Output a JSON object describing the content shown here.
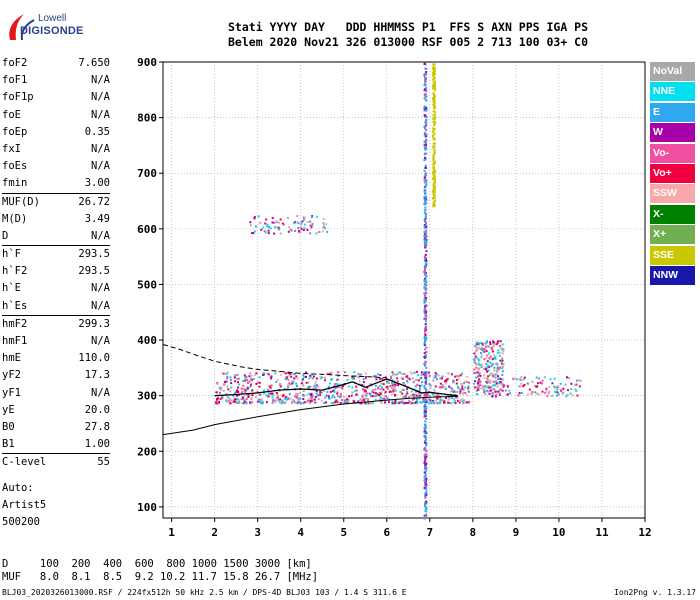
{
  "logo": {
    "line1": "Lowell",
    "line2": "DIGISONDE"
  },
  "header": {
    "line1": "Stati YYYY DAY   DDD HHMMSS P1  FFS S AXN PPS IGA PS",
    "line2": "Belem 2020 Nov21 326 013000 RSF 005 2 713 100 03+ C0"
  },
  "params": [
    {
      "k": "foF2",
      "v": "7.650"
    },
    {
      "k": "foF1",
      "v": "N/A"
    },
    {
      "k": "foF1p",
      "v": "N/A"
    },
    {
      "k": "foE",
      "v": "N/A"
    },
    {
      "k": "foEp",
      "v": "0.35"
    },
    {
      "k": "fxI",
      "v": "N/A"
    },
    {
      "k": "foEs",
      "v": "N/A"
    },
    {
      "k": "fmin",
      "v": "3.00"
    },
    {
      "k": "MUF(D)",
      "v": "26.72"
    },
    {
      "k": "M(D)",
      "v": "3.49"
    },
    {
      "k": "D",
      "v": "N/A"
    },
    {
      "k": "h`F",
      "v": "293.5"
    },
    {
      "k": "h`F2",
      "v": "293.5"
    },
    {
      "k": "h`E",
      "v": "N/A"
    },
    {
      "k": "h`Es",
      "v": "N/A"
    },
    {
      "k": "hmF2",
      "v": "299.3"
    },
    {
      "k": "hmF1",
      "v": "N/A"
    },
    {
      "k": "hmE",
      "v": "110.0"
    },
    {
      "k": "yF2",
      "v": "17.3"
    },
    {
      "k": "yF1",
      "v": "N/A"
    },
    {
      "k": "yE",
      "v": "20.0"
    },
    {
      "k": "B0",
      "v": "27.8"
    },
    {
      "k": "B1",
      "v": "1.00"
    },
    {
      "k": "C-level",
      "v": "55"
    }
  ],
  "auto": {
    "line1": "Auto:",
    "line2": "Artist5",
    "line3": "500200"
  },
  "legend": [
    {
      "label": "NoVal",
      "color": "#a8a8a8"
    },
    {
      "label": "NNE",
      "color": "#00e0f0"
    },
    {
      "label": "E",
      "color": "#30a8f0"
    },
    {
      "label": "W",
      "color": "#a800a8"
    },
    {
      "label": "Vo-",
      "color": "#f050a0"
    },
    {
      "label": "Vo+",
      "color": "#f00040"
    },
    {
      "label": "SSW",
      "color": "#f8a8a8"
    },
    {
      "label": "X-",
      "color": "#008000"
    },
    {
      "label": "X+",
      "color": "#70b050"
    },
    {
      "label": "SSE",
      "color": "#c8c800"
    },
    {
      "label": "NNW",
      "color": "#1818a8"
    }
  ],
  "bottom": {
    "d_line": "D     100  200  400  600  800 1000 1500 3000 [km]",
    "muf_line": "MUF   8.0  8.1  8.5  9.2 10.2 11.7 15.8 26.7 [MHz]"
  },
  "footer": "BLJ03_2020326013000.RSF / 224fx512h 50 kHz 2.5 km / DPS-4D BLJ03 103 / 1.4 S 311.6 E",
  "version": "Ion2Png v. 1.3.17",
  "chart_data": {
    "type": "scatter",
    "title": "",
    "xlabel": "",
    "ylabel": "",
    "xlim": [
      0.8,
      12
    ],
    "ylim": [
      80,
      900
    ],
    "x_ticks": [
      1,
      2,
      3,
      4,
      5,
      6,
      7,
      8,
      9,
      10,
      11,
      12
    ],
    "y_ticks": [
      100,
      200,
      300,
      400,
      500,
      600,
      700,
      800,
      900
    ],
    "grid": true,
    "legend_position": "right",
    "series": [
      {
        "label_curve": "trace",
        "x": [
          2.0,
          2.5,
          3.0,
          3.5,
          4.0,
          4.5,
          5.0,
          5.2,
          5.5,
          6.0,
          6.4,
          6.8,
          7.0,
          7.4,
          7.65
        ],
        "y": [
          300,
          302,
          305,
          310,
          312,
          310,
          320,
          325,
          315,
          330,
          318,
          305,
          306,
          302,
          300
        ]
      },
      {
        "label_curve": "profile_lower",
        "x": [
          0.8,
          1.5,
          2.0,
          3.0,
          4.0,
          5.0,
          6.0,
          6.5,
          7.0,
          7.65
        ],
        "y": [
          230,
          238,
          248,
          262,
          275,
          285,
          292,
          295,
          297,
          299
        ]
      },
      {
        "label_curve": "profile_upper_dashed",
        "x": [
          0.8,
          1.2,
          1.6,
          2.0,
          2.6,
          3.0,
          3.6,
          4.0,
          4.6,
          5.0,
          5.6,
          6.0
        ],
        "y": [
          392,
          383,
          372,
          362,
          352,
          347,
          343,
          340,
          338,
          336,
          334,
          332
        ]
      }
    ],
    "echo_regions": [
      {
        "x": [
          2.0,
          7.9
        ],
        "y": [
          288,
          345
        ],
        "density": "high"
      },
      {
        "x": [
          8.0,
          8.7
        ],
        "y": [
          300,
          400
        ],
        "density": "medium"
      },
      {
        "x": [
          8.7,
          10.5
        ],
        "y": [
          300,
          335
        ],
        "density": "low"
      },
      {
        "x": [
          2.8,
          4.6
        ],
        "y": [
          593,
          625
        ],
        "density": "low"
      },
      {
        "x": [
          6.85,
          6.9
        ],
        "y": [
          80,
          900
        ],
        "density": "high",
        "note": "vertical line"
      },
      {
        "x": [
          7.05,
          7.1
        ],
        "y": [
          640,
          900
        ],
        "density": "medium",
        "note": "vertical yellow line"
      }
    ]
  }
}
